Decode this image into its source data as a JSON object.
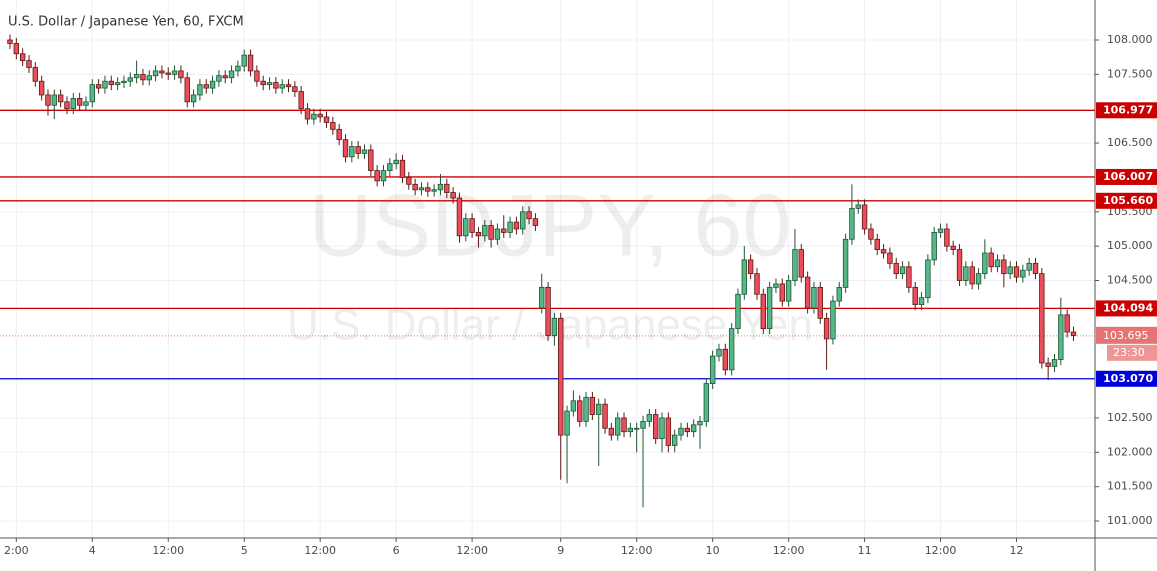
{
  "chart_data": {
    "type": "candlestick",
    "title": "U.S. Dollar / Japanese Yen, 60, FXCM",
    "watermark": "USDJPY, 60",
    "watermark_subtitle": "U.S. Dollar / Japanese Yen",
    "up_color": "#53b987",
    "up_border": "#225437",
    "down_color": "#eb4d5c",
    "down_border": "#5b1a13",
    "ylim": [
      100.753,
      108.582
    ],
    "xlim": [
      -1.58,
      171.4
    ],
    "grid": true,
    "yticks": [
      {
        "value": 108,
        "label": "108.000"
      },
      {
        "value": 107.5,
        "label": "107.500"
      },
      {
        "value": 106.5,
        "label": "106.500"
      },
      {
        "value": 105.5,
        "label": "105.500"
      },
      {
        "value": 105,
        "label": "105.000"
      },
      {
        "value": 104.5,
        "label": "104.500"
      },
      {
        "value": 102.5,
        "label": "102.500"
      },
      {
        "value": 102,
        "label": "102.000"
      },
      {
        "value": 101.5,
        "label": "101.500"
      },
      {
        "value": 101,
        "label": "101.000"
      }
    ],
    "xticks": [
      {
        "value": 1,
        "label": "2:00"
      },
      {
        "value": 13,
        "label": "4"
      },
      {
        "value": 25,
        "label": "12:00"
      },
      {
        "value": 37,
        "label": "5"
      },
      {
        "value": 49,
        "label": "12:00"
      },
      {
        "value": 61,
        "label": "6"
      },
      {
        "value": 73,
        "label": "12:00"
      },
      {
        "value": 87,
        "label": "9"
      },
      {
        "value": 99,
        "label": "12:00"
      },
      {
        "value": 111,
        "label": "10"
      },
      {
        "value": 123,
        "label": "12:00"
      },
      {
        "value": 135,
        "label": "11"
      },
      {
        "value": 147,
        "label": "12:00"
      },
      {
        "value": 159,
        "label": "12"
      }
    ],
    "levels": [
      {
        "value": 106.977,
        "label": "106.977",
        "color": "#cc0000"
      },
      {
        "value": 106.007,
        "label": "106.007",
        "color": "#cc0000"
      },
      {
        "value": 105.66,
        "label": "105.660",
        "color": "#cc0000"
      },
      {
        "value": 104.094,
        "label": "104.094",
        "color": "#cc0000"
      },
      {
        "value": 103.07,
        "label": "103.070",
        "color": "#0000dd"
      }
    ],
    "current_price": {
      "value": 103.695,
      "label": "103.695",
      "color": "#e57373"
    },
    "countdown": "23:30",
    "candles": [
      [
        108.0,
        108.08,
        107.87,
        107.95
      ],
      [
        107.95,
        108.03,
        107.72,
        107.8
      ],
      [
        107.8,
        107.88,
        107.62,
        107.7
      ],
      [
        107.7,
        107.78,
        107.52,
        107.6
      ],
      [
        107.6,
        107.68,
        107.32,
        107.4
      ],
      [
        107.4,
        107.48,
        107.12,
        107.2
      ],
      [
        107.2,
        107.28,
        106.9,
        107.05
      ],
      [
        107.05,
        107.28,
        106.85,
        107.2
      ],
      [
        107.2,
        107.28,
        107.02,
        107.1
      ],
      [
        107.1,
        107.18,
        106.92,
        107.0
      ],
      [
        107.0,
        107.23,
        106.92,
        107.15
      ],
      [
        107.15,
        107.23,
        106.97,
        107.05
      ],
      [
        107.05,
        107.18,
        106.97,
        107.1
      ],
      [
        107.1,
        107.43,
        107.02,
        107.35
      ],
      [
        107.35,
        107.43,
        107.22,
        107.3
      ],
      [
        107.3,
        107.48,
        107.22,
        107.4
      ],
      [
        107.4,
        107.48,
        107.27,
        107.35
      ],
      [
        107.35,
        107.46,
        107.27,
        107.38
      ],
      [
        107.38,
        107.48,
        107.3,
        107.4
      ],
      [
        107.4,
        107.53,
        107.32,
        107.45
      ],
      [
        107.45,
        107.7,
        107.37,
        107.5
      ],
      [
        107.5,
        107.58,
        107.34,
        107.42
      ],
      [
        107.42,
        107.56,
        107.34,
        107.48
      ],
      [
        107.48,
        107.63,
        107.4,
        107.55
      ],
      [
        107.55,
        107.63,
        107.44,
        107.52
      ],
      [
        107.52,
        107.6,
        107.42,
        107.5
      ],
      [
        107.5,
        107.63,
        107.42,
        107.55
      ],
      [
        107.55,
        107.63,
        107.37,
        107.45
      ],
      [
        107.45,
        107.53,
        107.02,
        107.1
      ],
      [
        107.1,
        107.28,
        107.02,
        107.2
      ],
      [
        107.2,
        107.43,
        107.12,
        107.35
      ],
      [
        107.35,
        107.43,
        107.22,
        107.3
      ],
      [
        107.3,
        107.48,
        107.22,
        107.4
      ],
      [
        107.4,
        107.56,
        107.32,
        107.48
      ],
      [
        107.48,
        107.56,
        107.37,
        107.45
      ],
      [
        107.45,
        107.63,
        107.37,
        107.55
      ],
      [
        107.55,
        107.7,
        107.47,
        107.62
      ],
      [
        107.62,
        107.86,
        107.54,
        107.78
      ],
      [
        107.78,
        107.86,
        107.47,
        107.55
      ],
      [
        107.55,
        107.63,
        107.32,
        107.4
      ],
      [
        107.4,
        107.48,
        107.27,
        107.35
      ],
      [
        107.35,
        107.46,
        107.27,
        107.38
      ],
      [
        107.38,
        107.46,
        107.22,
        107.3
      ],
      [
        107.3,
        107.43,
        107.22,
        107.35
      ],
      [
        107.35,
        107.43,
        107.24,
        107.32
      ],
      [
        107.32,
        107.4,
        107.17,
        107.25
      ],
      [
        107.25,
        107.33,
        106.92,
        107.0
      ],
      [
        107.0,
        107.08,
        106.77,
        106.85
      ],
      [
        106.85,
        107.0,
        106.77,
        106.92
      ],
      [
        106.92,
        107.0,
        106.8,
        106.88
      ],
      [
        106.88,
        106.96,
        106.72,
        106.8
      ],
      [
        106.8,
        106.88,
        106.62,
        106.7
      ],
      [
        106.7,
        106.78,
        106.47,
        106.55
      ],
      [
        106.55,
        106.63,
        106.22,
        106.3
      ],
      [
        106.3,
        106.53,
        106.22,
        106.45
      ],
      [
        106.45,
        106.53,
        106.27,
        106.35
      ],
      [
        106.35,
        106.48,
        106.27,
        106.4
      ],
      [
        106.4,
        106.48,
        106.02,
        106.1
      ],
      [
        106.1,
        106.18,
        105.87,
        105.95
      ],
      [
        105.95,
        106.18,
        105.87,
        106.1
      ],
      [
        106.1,
        106.28,
        106.02,
        106.2
      ],
      [
        106.2,
        106.35,
        106.12,
        106.25
      ],
      [
        106.25,
        106.33,
        105.92,
        106.0
      ],
      [
        106.0,
        106.08,
        105.82,
        105.9
      ],
      [
        105.9,
        105.98,
        105.74,
        105.82
      ],
      [
        105.82,
        105.93,
        105.74,
        105.85
      ],
      [
        105.85,
        105.93,
        105.72,
        105.8
      ],
      [
        105.8,
        105.9,
        105.72,
        105.82
      ],
      [
        105.82,
        106.05,
        105.74,
        105.9
      ],
      [
        105.9,
        105.98,
        105.7,
        105.78
      ],
      [
        105.78,
        105.86,
        105.62,
        105.7
      ],
      [
        105.7,
        105.78,
        105.05,
        105.15
      ],
      [
        105.15,
        105.48,
        105.07,
        105.4
      ],
      [
        105.4,
        105.48,
        105.12,
        105.2
      ],
      [
        105.2,
        105.28,
        104.98,
        105.15
      ],
      [
        105.15,
        105.38,
        105.07,
        105.3
      ],
      [
        105.3,
        105.38,
        104.98,
        105.1
      ],
      [
        105.1,
        105.33,
        105.02,
        105.25
      ],
      [
        105.25,
        105.45,
        105.12,
        105.2
      ],
      [
        105.2,
        105.43,
        105.12,
        105.35
      ],
      [
        105.35,
        105.43,
        105.17,
        105.25
      ],
      [
        105.25,
        105.58,
        105.17,
        105.5
      ],
      [
        105.5,
        105.58,
        105.32,
        105.4
      ],
      [
        105.4,
        105.48,
        105.22,
        105.3
      ],
      [
        104.1,
        104.6,
        104.02,
        104.4
      ],
      [
        104.4,
        104.48,
        103.62,
        103.7
      ],
      [
        103.7,
        104.03,
        103.55,
        103.95
      ],
      [
        103.95,
        104.03,
        101.6,
        102.25
      ],
      [
        102.25,
        102.68,
        101.55,
        102.6
      ],
      [
        102.6,
        102.9,
        102.52,
        102.75
      ],
      [
        102.75,
        102.83,
        102.37,
        102.45
      ],
      [
        102.45,
        102.88,
        102.37,
        102.8
      ],
      [
        102.8,
        102.88,
        102.47,
        102.55
      ],
      [
        102.55,
        102.78,
        101.8,
        102.7
      ],
      [
        102.7,
        102.78,
        102.27,
        102.35
      ],
      [
        102.35,
        102.43,
        102.17,
        102.25
      ],
      [
        102.25,
        102.58,
        102.17,
        102.5
      ],
      [
        102.5,
        102.58,
        102.22,
        102.3
      ],
      [
        102.3,
        102.43,
        102.22,
        102.35
      ],
      [
        102.35,
        102.43,
        102.0,
        102.35
      ],
      [
        102.35,
        102.53,
        101.2,
        102.45
      ],
      [
        102.45,
        102.63,
        102.37,
        102.55
      ],
      [
        102.55,
        102.63,
        102.12,
        102.2
      ],
      [
        102.2,
        102.58,
        102.0,
        102.5
      ],
      [
        102.5,
        102.58,
        102.0,
        102.1
      ],
      [
        102.1,
        102.33,
        102.0,
        102.25
      ],
      [
        102.25,
        102.43,
        102.17,
        102.35
      ],
      [
        102.35,
        102.43,
        102.22,
        102.3
      ],
      [
        102.3,
        102.48,
        102.22,
        102.4
      ],
      [
        102.4,
        102.53,
        102.05,
        102.45
      ],
      [
        102.45,
        103.08,
        102.37,
        103.0
      ],
      [
        103.0,
        103.48,
        102.92,
        103.4
      ],
      [
        103.4,
        103.58,
        103.32,
        103.5
      ],
      [
        103.5,
        103.58,
        103.12,
        103.2
      ],
      [
        103.2,
        103.88,
        103.12,
        103.8
      ],
      [
        103.8,
        104.38,
        103.72,
        104.3
      ],
      [
        104.3,
        105.0,
        104.22,
        104.8
      ],
      [
        104.8,
        104.88,
        104.52,
        104.6
      ],
      [
        104.6,
        104.68,
        104.22,
        104.3
      ],
      [
        104.3,
        104.38,
        103.72,
        103.8
      ],
      [
        103.8,
        104.48,
        103.72,
        104.4
      ],
      [
        104.4,
        104.53,
        104.32,
        104.45
      ],
      [
        104.45,
        104.53,
        104.12,
        104.2
      ],
      [
        104.2,
        104.58,
        104.12,
        104.5
      ],
      [
        104.5,
        105.25,
        104.42,
        104.95
      ],
      [
        104.95,
        105.03,
        104.47,
        104.55
      ],
      [
        104.55,
        104.63,
        104.02,
        104.1
      ],
      [
        104.1,
        104.48,
        104.02,
        104.4
      ],
      [
        104.4,
        104.48,
        103.87,
        103.95
      ],
      [
        103.95,
        104.03,
        103.2,
        103.65
      ],
      [
        103.65,
        104.28,
        103.57,
        104.2
      ],
      [
        104.2,
        104.48,
        104.12,
        104.4
      ],
      [
        104.4,
        105.18,
        104.32,
        105.1
      ],
      [
        105.1,
        105.9,
        105.02,
        105.55
      ],
      [
        105.55,
        105.68,
        105.47,
        105.6
      ],
      [
        105.6,
        105.68,
        105.17,
        105.25
      ],
      [
        105.25,
        105.33,
        105.02,
        105.1
      ],
      [
        105.1,
        105.18,
        104.87,
        104.95
      ],
      [
        104.95,
        105.03,
        104.82,
        104.9
      ],
      [
        104.9,
        104.98,
        104.67,
        104.75
      ],
      [
        104.75,
        104.83,
        104.52,
        104.6
      ],
      [
        104.6,
        104.78,
        104.52,
        104.7
      ],
      [
        104.7,
        104.78,
        104.32,
        104.4
      ],
      [
        104.4,
        104.48,
        104.07,
        104.15
      ],
      [
        104.15,
        104.33,
        104.07,
        104.25
      ],
      [
        104.25,
        104.88,
        104.17,
        104.8
      ],
      [
        104.8,
        105.28,
        104.72,
        105.2
      ],
      [
        105.2,
        105.33,
        105.12,
        105.25
      ],
      [
        105.25,
        105.33,
        104.92,
        105.0
      ],
      [
        105.0,
        105.08,
        104.87,
        104.95
      ],
      [
        104.95,
        105.03,
        104.42,
        104.5
      ],
      [
        104.5,
        104.78,
        104.42,
        104.7
      ],
      [
        104.7,
        104.78,
        104.37,
        104.45
      ],
      [
        104.45,
        104.68,
        104.37,
        104.6
      ],
      [
        104.6,
        105.1,
        104.52,
        104.9
      ],
      [
        104.9,
        104.98,
        104.62,
        104.7
      ],
      [
        104.7,
        104.88,
        104.62,
        104.8
      ],
      [
        104.8,
        104.88,
        104.4,
        104.6
      ],
      [
        104.6,
        104.78,
        104.52,
        104.7
      ],
      [
        104.7,
        104.78,
        104.47,
        104.55
      ],
      [
        104.55,
        104.73,
        104.47,
        104.65
      ],
      [
        104.65,
        104.83,
        104.57,
        104.75
      ],
      [
        104.75,
        104.83,
        104.52,
        104.6
      ],
      [
        104.6,
        104.68,
        103.22,
        103.3
      ],
      [
        103.3,
        103.38,
        103.05,
        103.25
      ],
      [
        103.25,
        103.43,
        103.17,
        103.35
      ],
      [
        103.35,
        104.25,
        103.27,
        104.0
      ],
      [
        104.0,
        104.08,
        103.67,
        103.75
      ],
      [
        103.75,
        103.83,
        103.62,
        103.7
      ]
    ]
  }
}
